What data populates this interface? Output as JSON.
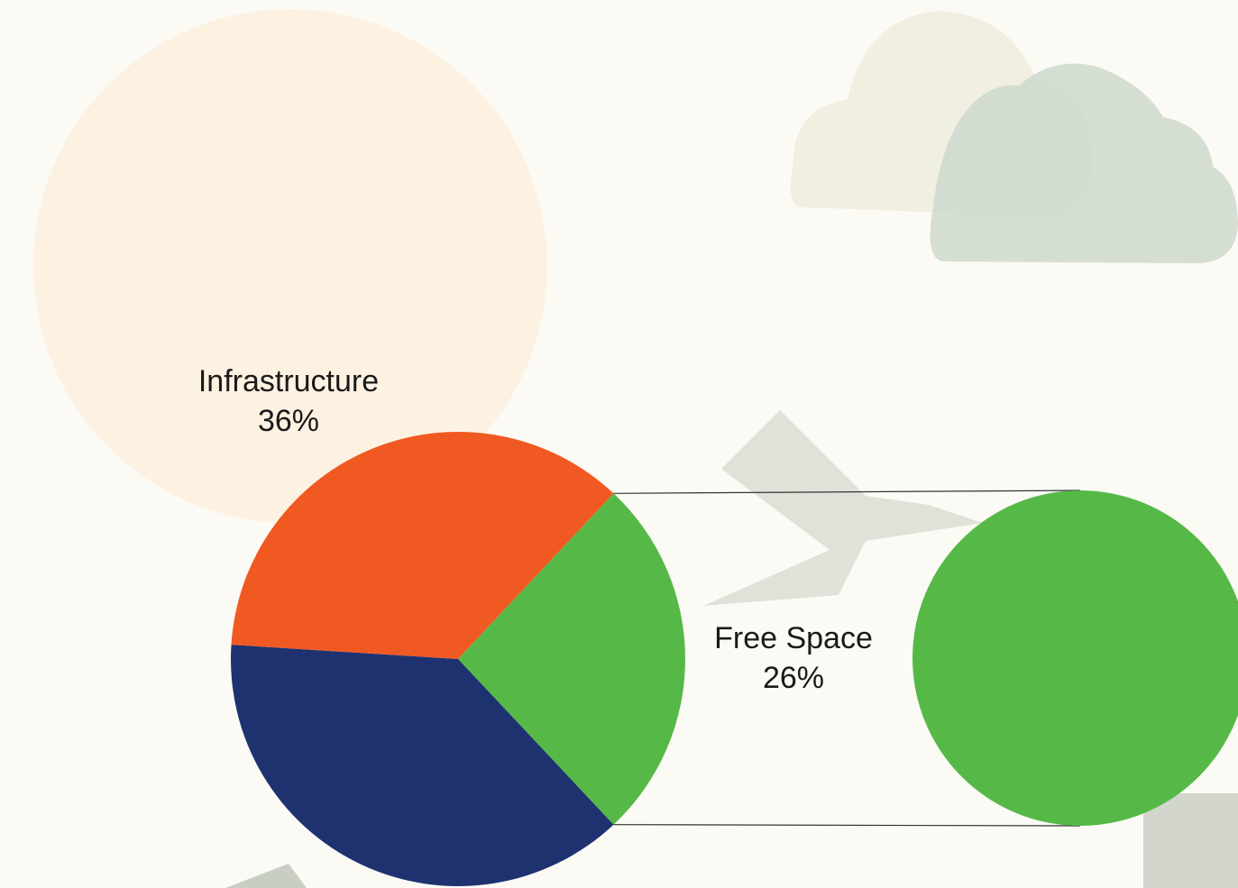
{
  "chart_data": {
    "type": "pie-of-pie",
    "categories": [
      "Infrastructure",
      null,
      "Free Space"
    ],
    "values": [
      36,
      38,
      26
    ],
    "value_labels": [
      "36%",
      null,
      "26%"
    ],
    "colors": [
      "#f05a22",
      "#1e3270",
      "#56b947"
    ]
  }
}
